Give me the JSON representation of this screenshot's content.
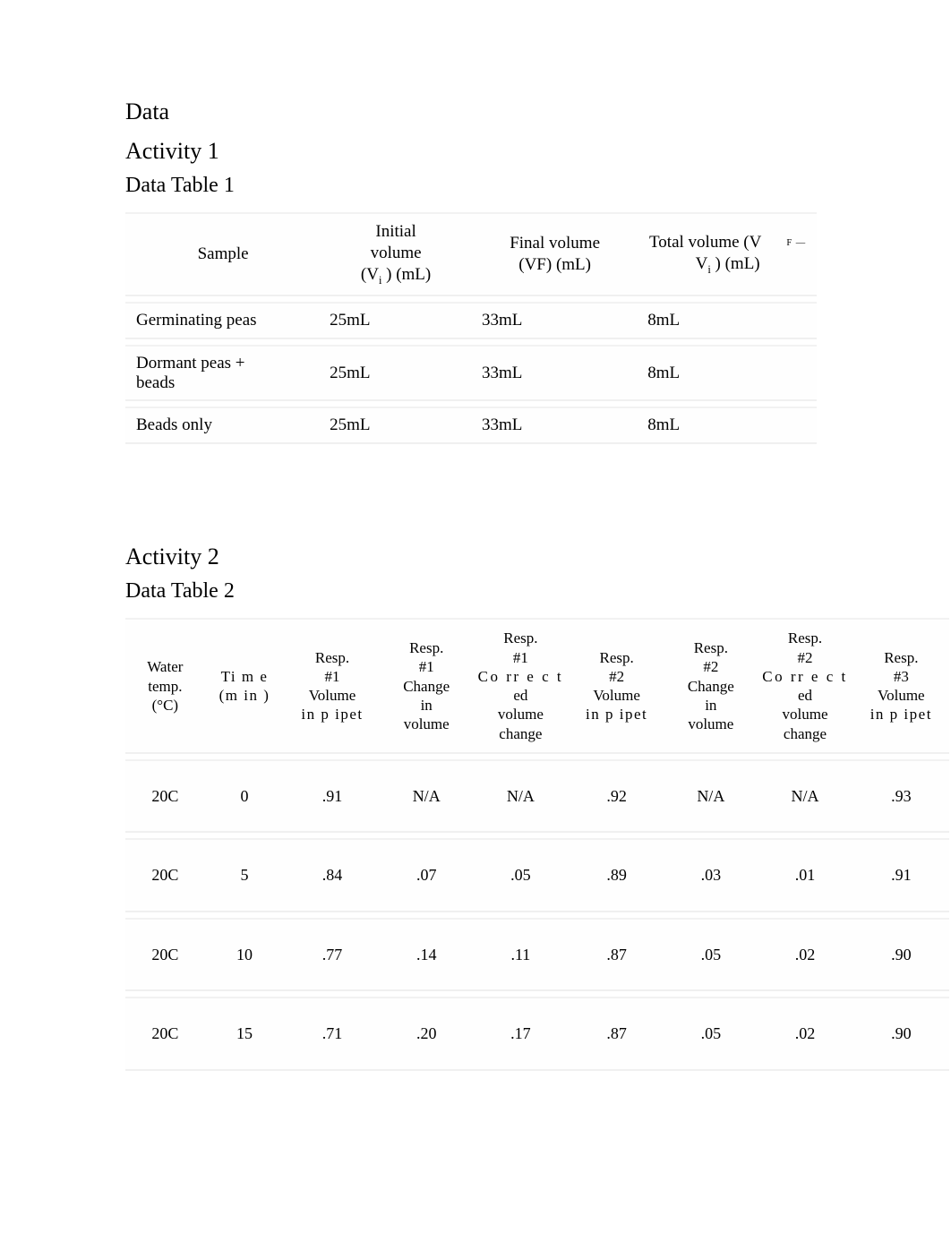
{
  "headings": {
    "data": "Data",
    "activity1": "Activity 1",
    "datatable1": "Data Table 1",
    "activity2": "Activity 2",
    "datatable2": "Data Table 2"
  },
  "table1": {
    "headers": {
      "sample": "Sample",
      "initial_l1": "Initial",
      "initial_l2": "volume",
      "initial_l3_pre": "(V",
      "initial_l3_sub": "i",
      "initial_l3_post": " ) (mL)",
      "final_l1": "Final volume",
      "final_l2": "(VF) (mL)",
      "total_l1_pre": "Total volume (V",
      "total_l1_note": "F —",
      "total_l2_pre": "V",
      "total_l2_sub": "i",
      "total_l2_post": " ) (mL)"
    },
    "rows": [
      {
        "sample": "Germinating peas",
        "vi": "25mL",
        "vf": "33mL",
        "vt": "8mL"
      },
      {
        "sample": "Dormant peas + beads",
        "vi": "25mL",
        "vf": "33mL",
        "vt": "8mL"
      },
      {
        "sample": "Beads only",
        "vi": "25mL",
        "vf": "33mL",
        "vt": "8mL"
      }
    ]
  },
  "table2": {
    "headers": {
      "c0_l1": "Water",
      "c0_l2": "temp.",
      "c0_l3": "(°C)",
      "c1_l1": "Ti m e",
      "c1_l2": "(m in )",
      "c2_l1": "Resp.",
      "c2_l2": "#1",
      "c2_l3": "Volume",
      "c2_l4": "in   p ipet",
      "c3_l1": "Resp.",
      "c3_l2": "#1",
      "c3_l3": "Change",
      "c3_l4": "in",
      "c3_l5": "volume",
      "c4_l1": "Resp.",
      "c4_l2": "#1",
      "c4_l3": "Co rr e c t",
      "c4_l4": "ed",
      "c4_l5": "volume",
      "c4_l6": "change",
      "c5_l1": "Resp.",
      "c5_l2": "#2",
      "c5_l3": "Volume",
      "c5_l4": "in   p ipet",
      "c6_l1": "Resp.",
      "c6_l2": "#2",
      "c6_l3": "Change",
      "c6_l4": "in",
      "c6_l5": "volume",
      "c7_l1": "Resp.",
      "c7_l2": "#2",
      "c7_l3": "Co rr e c t",
      "c7_l4": "ed",
      "c7_l5": "volume",
      "c7_l6": "change",
      "c8_l1": "Resp.",
      "c8_l2": "#3",
      "c8_l3": "Volume",
      "c8_l4": "in   p ipet"
    },
    "rows": [
      {
        "c0": "20C",
        "c1": "0",
        "c2": ".91",
        "c3": "N/A",
        "c4": "N/A",
        "c5": ".92",
        "c6": "N/A",
        "c7": "N/A",
        "c8": ".93"
      },
      {
        "c0": "20C",
        "c1": "5",
        "c2": ".84",
        "c3": ".07",
        "c4": ".05",
        "c5": ".89",
        "c6": ".03",
        "c7": ".01",
        "c8": ".91"
      },
      {
        "c0": "20C",
        "c1": "10",
        "c2": ".77",
        "c3": ".14",
        "c4": ".11",
        "c5": ".87",
        "c6": ".05",
        "c7": ".02",
        "c8": ".90"
      },
      {
        "c0": "20C",
        "c1": "15",
        "c2": ".71",
        "c3": ".20",
        "c4": ".17",
        "c5": ".87",
        "c6": ".05",
        "c7": ".02",
        "c8": ".90"
      }
    ]
  },
  "colors": {
    "text": "#000000",
    "background": "#ffffff",
    "row_bg": "#fefefe",
    "row_border": "#f1f1f1"
  },
  "typography": {
    "font_family": "Times New Roman",
    "heading_fontsize_pt": 20,
    "subheading_fontsize_pt": 18,
    "table1_fontsize_pt": 14,
    "table2_fontsize_pt": 13
  }
}
